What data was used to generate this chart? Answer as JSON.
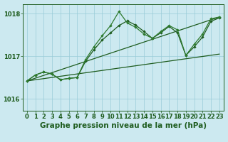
{
  "title": "Graphe pression niveau de la mer (hPa)",
  "hours": [
    0,
    1,
    2,
    3,
    4,
    5,
    6,
    7,
    8,
    9,
    10,
    11,
    12,
    13,
    14,
    15,
    16,
    17,
    18,
    19,
    20,
    21,
    22,
    23
  ],
  "line1": [
    1016.42,
    1016.56,
    1016.63,
    1016.58,
    1016.45,
    1016.48,
    1016.5,
    1016.88,
    1017.15,
    1017.38,
    1017.55,
    1017.72,
    1017.83,
    1017.73,
    1017.58,
    1017.42,
    1017.55,
    1017.7,
    1017.55,
    1017.02,
    1017.22,
    1017.45,
    1017.82,
    1017.9
  ],
  "line2": [
    1016.42,
    1016.56,
    1016.63,
    1016.58,
    1016.45,
    1016.48,
    1016.5,
    1016.92,
    1017.22,
    1017.48,
    1017.72,
    1018.05,
    1017.78,
    1017.68,
    1017.52,
    1017.42,
    1017.58,
    1017.72,
    1017.62,
    1017.02,
    1017.28,
    1017.52,
    1017.88,
    1017.92
  ],
  "trend1_x": [
    0,
    23
  ],
  "trend1_y": [
    1016.42,
    1017.92
  ],
  "trend2_x": [
    0,
    23
  ],
  "trend2_y": [
    1016.42,
    1017.05
  ],
  "ylim": [
    1015.72,
    1018.22
  ],
  "xlim": [
    -0.5,
    23.5
  ],
  "ytick_vals": [
    1016.0,
    1017.0,
    1018.0
  ],
  "ytick_labels": [
    "1016",
    "1017",
    "1018"
  ],
  "bg_color": "#cce9f0",
  "grid_color": "#99ccd9",
  "dark_green": "#1e5c1e",
  "mid_green": "#2d7a2d",
  "title_fontsize": 7.5,
  "tick_fontsize": 6.0,
  "marker": "D",
  "markersize": 2.2,
  "linewidth": 0.9
}
